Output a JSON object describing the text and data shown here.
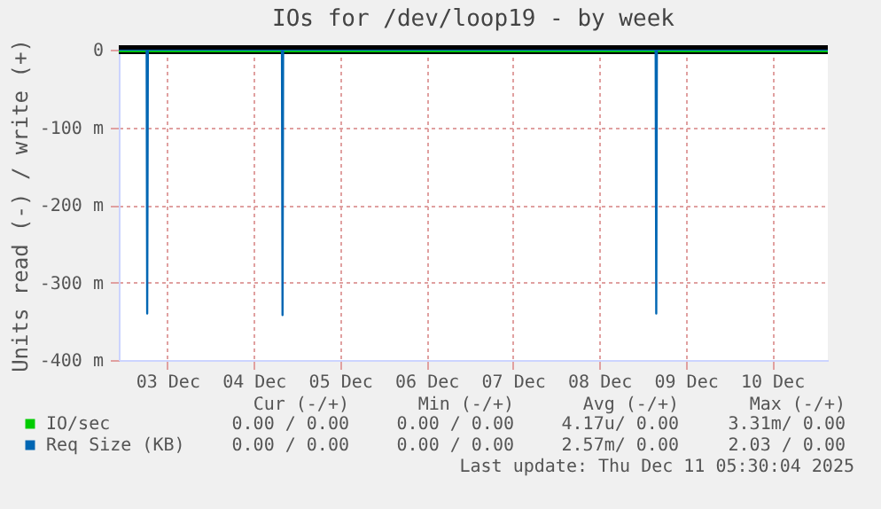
{
  "chart_data": {
    "type": "line",
    "title": "IOs for /dev/loop19 - by week",
    "ylabel": "Units read (-) / write (+)",
    "xlim": [
      "2025-12-02T22:30",
      "2025-12-11T03:30"
    ],
    "xticks": [
      {
        "value": "2025-12-03T12:00",
        "label": "03 Dec"
      },
      {
        "value": "2025-12-04T12:00",
        "label": "04 Dec"
      },
      {
        "value": "2025-12-05T12:00",
        "label": "05 Dec"
      },
      {
        "value": "2025-12-06T12:00",
        "label": "06 Dec"
      },
      {
        "value": "2025-12-07T12:00",
        "label": "07 Dec"
      },
      {
        "value": "2025-12-08T12:00",
        "label": "08 Dec"
      },
      {
        "value": "2025-12-09T12:00",
        "label": "09 Dec"
      },
      {
        "value": "2025-12-10T12:00",
        "label": "10 Dec"
      }
    ],
    "ylim": [
      -400,
      0
    ],
    "yticks": [
      {
        "value": -400,
        "label": "-400 m"
      },
      {
        "value": -300,
        "label": "-300 m"
      },
      {
        "value": -200,
        "label": "-200 m"
      },
      {
        "value": -100,
        "label": "-100 m"
      },
      0
    ],
    "series": [
      {
        "name": "IO/sec",
        "color": "#00cc00",
        "x": [
          "2025-12-02T22:30",
          "2025-12-11T03:30"
        ],
        "values": [
          0,
          0
        ]
      },
      {
        "name": "Req Size (KB)",
        "color": "#0066b3",
        "x": [
          "2025-12-02T22:30",
          "2025-12-03T06:15",
          "2025-12-03T06:24",
          "2025-12-03T06:35",
          "2025-12-04T19:50",
          "2025-12-04T20:00",
          "2025-12-04T20:10",
          "2025-12-09T03:40",
          "2025-12-09T03:50",
          "2025-12-09T04:00",
          "2025-12-11T03:30"
        ],
        "values": [
          0,
          0,
          -340,
          0,
          0,
          -342,
          0,
          0,
          -340,
          0,
          0
        ]
      }
    ],
    "ref_lines": [
      {
        "axis": "y",
        "value": 0,
        "color": "#000000"
      }
    ],
    "grid": true,
    "legend": "bottom",
    "line_style": "solid",
    "marker": "none",
    "annotations": [
      "Cur (-/+)",
      "Min (-/+)",
      "Avg (-/+)",
      "Max (-/+)",
      "0.00 / 0.00",
      "0.00 / 0.00",
      "4.17u/ 0.00",
      "3.31m/ 0.00",
      "0.00 / 0.00",
      "0.00 / 0.00",
      "2.57m/ 0.00",
      "2.03 / 0.00",
      "Last update: Thu Dec 11 05:30:04 2025"
    ]
  }
}
